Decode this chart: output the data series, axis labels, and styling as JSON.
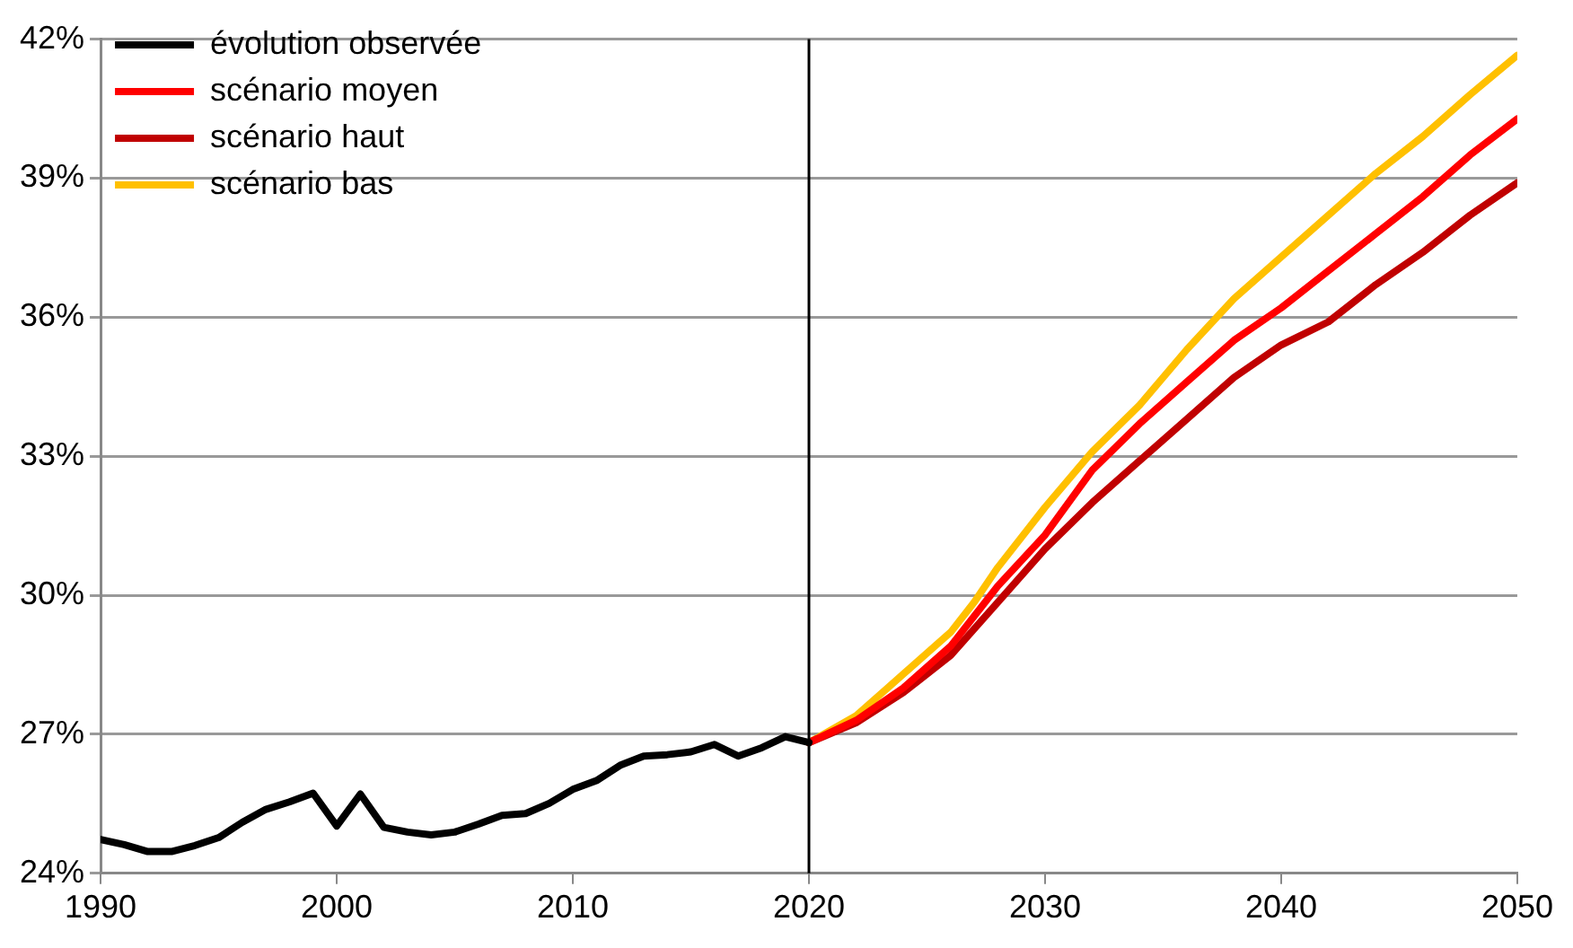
{
  "chart_data": {
    "type": "line",
    "xlim": [
      1990,
      2050
    ],
    "xticks": [
      1990,
      2000,
      2010,
      2020,
      2030,
      2040,
      2050
    ],
    "ylim": [
      24,
      42
    ],
    "yticks": [
      {
        "value": 24,
        "label": "24%"
      },
      {
        "value": 27,
        "label": "27%"
      },
      {
        "value": 30,
        "label": "30%"
      },
      {
        "value": 33,
        "label": "33%"
      },
      {
        "value": 36,
        "label": "36%"
      },
      {
        "value": 39,
        "label": "39%"
      },
      {
        "value": 42,
        "label": "42%"
      }
    ],
    "grid": "y",
    "legend": "top left",
    "marker": "none",
    "line_style": "solid",
    "ref_lines": [
      {
        "axis": "x",
        "value": 2020,
        "color": "#000000"
      }
    ],
    "series": [
      {
        "name": "évolution observée",
        "color": "#000000",
        "x": [
          1990,
          1991,
          1992,
          1993,
          1994,
          1995,
          1996,
          1997,
          1998,
          1999,
          2000,
          2001,
          2002,
          2003,
          2004,
          2005,
          2006,
          2007,
          2008,
          2009,
          2010,
          2011,
          2012,
          2013,
          2014,
          2015,
          2016,
          2017,
          2018,
          2019,
          2020
        ],
        "values": [
          24.73,
          24.62,
          24.47,
          24.47,
          24.6,
          24.77,
          25.1,
          25.38,
          25.54,
          25.73,
          25.02,
          25.71,
          24.99,
          24.89,
          24.83,
          24.89,
          25.06,
          25.25,
          25.29,
          25.51,
          25.81,
          26.0,
          26.33,
          26.53,
          26.56,
          26.62,
          26.78,
          26.53,
          26.71,
          26.95,
          26.82
        ]
      },
      {
        "name": "scénario moyen",
        "color": "#ff0000",
        "x": [
          2020,
          2022,
          2024,
          2026,
          2028,
          2030,
          2032,
          2034,
          2036,
          2038,
          2040,
          2042,
          2044,
          2046,
          2048,
          2050
        ],
        "values": [
          26.82,
          27.3,
          28.0,
          28.9,
          30.2,
          31.3,
          32.7,
          33.7,
          34.6,
          35.5,
          36.2,
          37.0,
          37.8,
          38.6,
          39.5,
          40.28
        ]
      },
      {
        "name": "scénario haut",
        "color": "#c00000",
        "x": [
          2020,
          2022,
          2024,
          2026,
          2028,
          2030,
          2032,
          2034,
          2036,
          2038,
          2040,
          2042,
          2044,
          2046,
          2048,
          2050
        ],
        "values": [
          26.82,
          27.25,
          27.9,
          28.7,
          29.85,
          31.0,
          32.0,
          32.9,
          33.8,
          34.7,
          35.4,
          35.9,
          36.7,
          37.4,
          38.2,
          38.9
        ]
      },
      {
        "name": "scénario bas",
        "color": "#ffc000",
        "x": [
          2020,
          2022,
          2024,
          2026,
          2027,
          2028,
          2030,
          2032,
          2034,
          2036,
          2038,
          2040,
          2042,
          2044,
          2046,
          2048,
          2050
        ],
        "values": [
          26.82,
          27.4,
          28.3,
          29.2,
          29.85,
          30.6,
          31.9,
          33.1,
          34.1,
          35.3,
          36.4,
          37.3,
          38.2,
          39.1,
          39.9,
          40.8,
          41.65
        ]
      }
    ]
  }
}
